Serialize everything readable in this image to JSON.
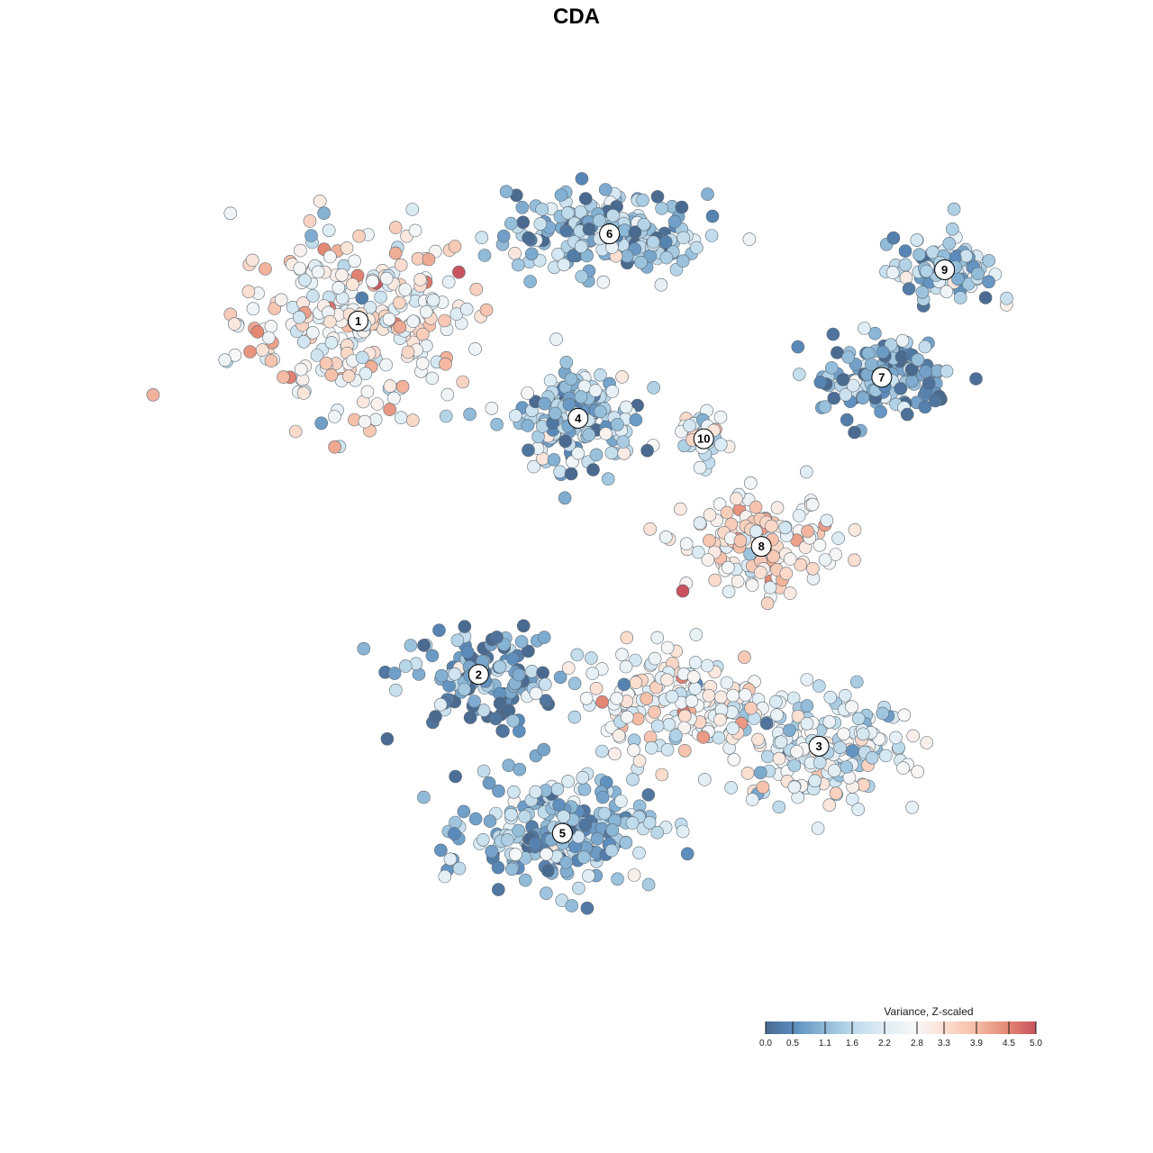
{
  "chart_data": {
    "type": "scatter",
    "title": "CDA",
    "xlabel": "",
    "ylabel": "",
    "grid": false,
    "legend": {
      "title": "Variance, Z-scaled",
      "placement": "bottom-right",
      "ticks": [
        "0.0",
        "0.5",
        "1.1",
        "1.6",
        "2.2",
        "2.8",
        "3.3",
        "3.9",
        "4.5",
        "5.0"
      ],
      "range": [
        0,
        5
      ]
    },
    "colorscale": [
      {
        "value": 0.0,
        "color": "#4a6a90"
      },
      {
        "value": 0.5,
        "color": "#5b8cbd"
      },
      {
        "value": 1.1,
        "color": "#8fbad8"
      },
      {
        "value": 1.6,
        "color": "#bcd9ea"
      },
      {
        "value": 2.2,
        "color": "#dfedf5"
      },
      {
        "value": 2.8,
        "color": "#f7f7f7"
      },
      {
        "value": 3.3,
        "color": "#fbe0d2"
      },
      {
        "value": 3.9,
        "color": "#f5bba3"
      },
      {
        "value": 4.5,
        "color": "#e38672"
      },
      {
        "value": 5.0,
        "color": "#c8525e"
      }
    ],
    "clusters": [
      {
        "label": "1",
        "x": -4.6,
        "y": 4.9,
        "spread": [
          2.1,
          1.7
        ],
        "mean": 2.9,
        "count": 280
      },
      {
        "label": "2",
        "x": -2.3,
        "y": -2.0,
        "spread": [
          1.4,
          0.9
        ],
        "mean": 0.7,
        "count": 130
      },
      {
        "label": "3",
        "x": 4.2,
        "y": -3.4,
        "spread": [
          1.6,
          1.0
        ],
        "mean": 2.1,
        "count": 190
      },
      {
        "label": "4",
        "x": -0.4,
        "y": 3.0,
        "spread": [
          1.0,
          0.9
        ],
        "mean": 1.5,
        "count": 170
      },
      {
        "label": "5",
        "x": -0.7,
        "y": -5.1,
        "spread": [
          1.6,
          1.0
        ],
        "mean": 1.1,
        "count": 230
      },
      {
        "label": "6",
        "x": 0.2,
        "y": 6.6,
        "spread": [
          1.7,
          0.7
        ],
        "mean": 1.2,
        "count": 210
      },
      {
        "label": "7",
        "x": 5.4,
        "y": 3.8,
        "spread": [
          1.2,
          0.7
        ],
        "mean": 0.9,
        "count": 150
      },
      {
        "label": "8",
        "x": 3.1,
        "y": 0.5,
        "spread": [
          1.3,
          0.8
        ],
        "mean": 3.0,
        "count": 140
      },
      {
        "label": "9",
        "x": 6.6,
        "y": 5.9,
        "spread": [
          0.9,
          0.6
        ],
        "mean": 1.4,
        "count": 90
      },
      {
        "label": "10",
        "x": 2.0,
        "y": 2.6,
        "spread": [
          0.4,
          0.5
        ],
        "mean": 2.3,
        "count": 35
      },
      {
        "label": "",
        "x": 1.5,
        "y": -2.5,
        "spread": [
          1.6,
          0.9
        ],
        "mean": 2.7,
        "count": 170
      }
    ],
    "xlim": [
      -8,
      8
    ],
    "ylim": [
      -8,
      8
    ]
  }
}
